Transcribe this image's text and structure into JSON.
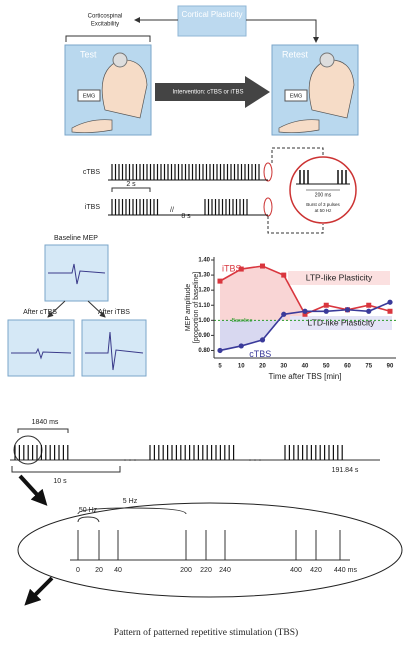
{
  "top": {
    "cortical_plasticity": "Cortical Plasticity",
    "corticospinal": [
      "Corticospinal",
      "Excitability"
    ],
    "test": "Test",
    "retest": "Retest",
    "emg": [
      "EMG",
      "EMG"
    ],
    "intervention": "Intervention: cTBS or iTBS"
  },
  "trains": {
    "ctbs": "cTBS",
    "itbs": "iTBS",
    "two_s": "2 s",
    "eight_s": "8 s",
    "zoom_ms": "200 ms",
    "burst": [
      "Burst of 3 pulses",
      "at 50 Hz"
    ]
  },
  "mep": {
    "baseline": "Baseline MEP",
    "after_ctbs": "After cTBS",
    "after_itbs": "After iTBS"
  },
  "chart_data": {
    "type": "line",
    "ylabel": [
      "MEP amplitude",
      "[proportion of baseline]"
    ],
    "xlabel": "Time after TBS [min]",
    "categories": [
      "5",
      "10",
      "20",
      "30",
      "40",
      "50",
      "60",
      "75",
      "90"
    ],
    "series": [
      {
        "name": "iTBS",
        "color": "#d9363e",
        "values": [
          1.26,
          1.34,
          1.36,
          1.3,
          1.04,
          1.1,
          1.07,
          1.1,
          1.06
        ]
      },
      {
        "name": "cTBS",
        "color": "#3a3a9a",
        "values": [
          0.8,
          0.83,
          0.87,
          1.04,
          1.06,
          1.06,
          1.07,
          1.06,
          1.12
        ]
      }
    ],
    "ylim": [
      0.75,
      1.42
    ],
    "yticks": [
      {
        "value": 0.8,
        "label": "0.80"
      },
      {
        "value": 0.9,
        "label": "0.90"
      },
      {
        "value": 1,
        "label": "1.00"
      },
      {
        "value": 1.1,
        "label": "1.10"
      },
      {
        "value": 1.2,
        "label": "1.20"
      },
      {
        "value": 1.3,
        "label": "1.30"
      },
      {
        "value": 1.4,
        "label": "1.40"
      }
    ],
    "baseline": {
      "value": 1,
      "label": "Baseline"
    },
    "annotations": [
      "LTP-like Plasticity",
      "LTD-like Plasticity"
    ]
  },
  "timeline": {
    "period": "1840 ms",
    "train": "10 s",
    "total": "191.84 s",
    "slow": "5 Hz",
    "fast": "50 Hz",
    "ticks": [
      "0",
      "20",
      "40",
      "200",
      "220",
      "240",
      "400",
      "420",
      "440 ms"
    ]
  },
  "caption": "Pattern of patterned repetitive stimulation (TBS)"
}
